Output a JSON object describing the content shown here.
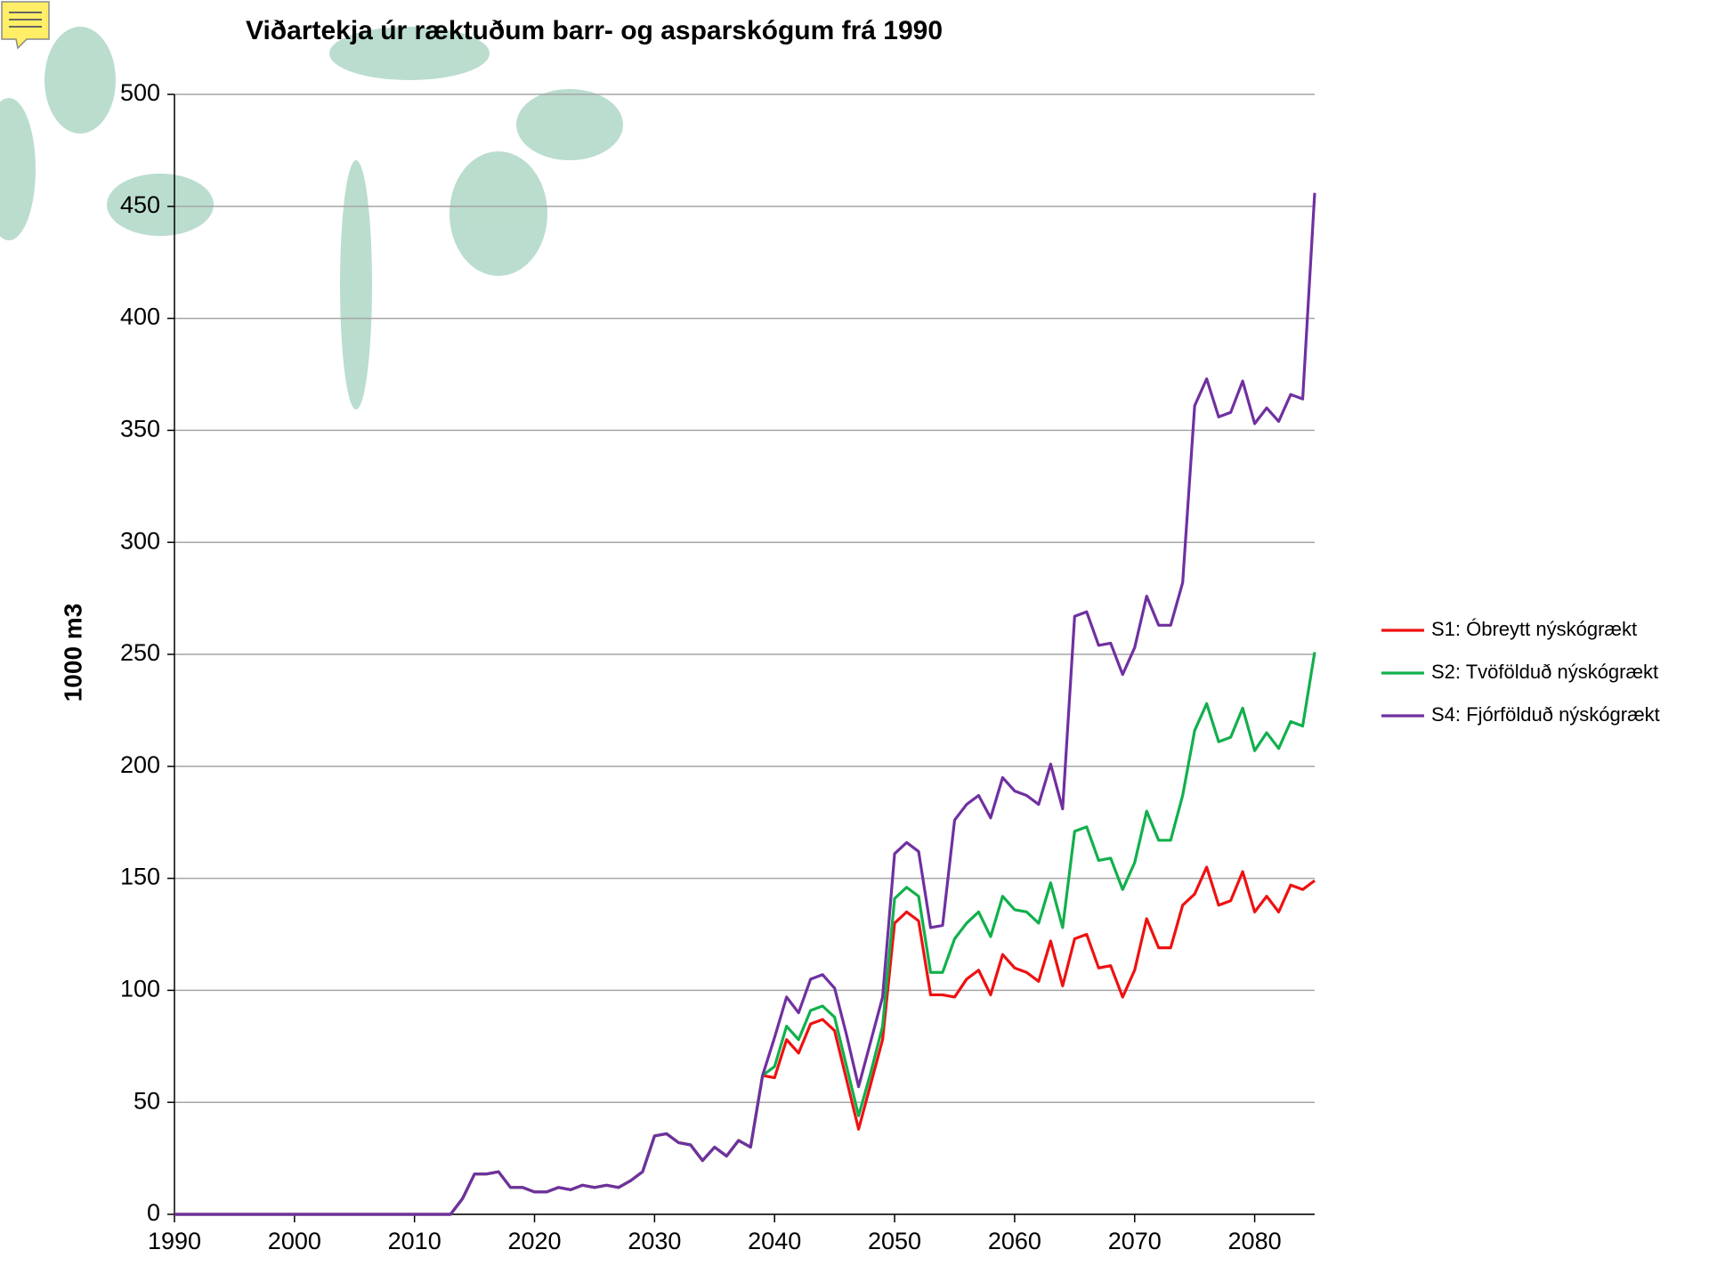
{
  "chart_data": {
    "type": "line",
    "title": "Viðartekja úr ræktuðum barr- og asparskógum frá 1990",
    "y_label": "1000 m3",
    "x": [
      1990,
      1991,
      1992,
      1993,
      1994,
      1995,
      1996,
      1997,
      1998,
      1999,
      2000,
      2001,
      2002,
      2003,
      2004,
      2005,
      2006,
      2007,
      2008,
      2009,
      2010,
      2011,
      2012,
      2013,
      2014,
      2015,
      2016,
      2017,
      2018,
      2019,
      2020,
      2021,
      2022,
      2023,
      2024,
      2025,
      2026,
      2027,
      2028,
      2029,
      2030,
      2031,
      2032,
      2033,
      2034,
      2035,
      2036,
      2037,
      2038,
      2039,
      2040,
      2041,
      2042,
      2043,
      2044,
      2045,
      2046,
      2047,
      2048,
      2049,
      2050,
      2051,
      2052,
      2053,
      2054,
      2055,
      2056,
      2057,
      2058,
      2059,
      2060,
      2061,
      2062,
      2063,
      2064,
      2065,
      2066,
      2067,
      2068,
      2069,
      2070,
      2071,
      2072,
      2073,
      2074,
      2075,
      2076,
      2077,
      2078,
      2079,
      2080,
      2081,
      2082,
      2083,
      2084,
      2085
    ],
    "series": [
      {
        "name": "S1: Óbreytt nýskógrækt",
        "color": "#ee1111",
        "values": [
          0,
          0,
          0,
          0,
          0,
          0,
          0,
          0,
          0,
          0,
          0,
          0,
          0,
          0,
          0,
          0,
          0,
          0,
          0,
          0,
          0,
          0,
          0,
          0,
          7,
          18,
          18,
          19,
          12,
          12,
          10,
          10,
          12,
          11,
          13,
          12,
          13,
          12,
          15,
          19,
          35,
          36,
          32,
          31,
          24,
          30,
          26,
          33,
          30,
          62,
          61,
          78,
          72,
          85,
          87,
          82,
          60,
          38,
          58,
          78,
          130,
          135,
          131,
          98,
          98,
          97,
          105,
          109,
          98,
          116,
          110,
          108,
          104,
          122,
          102,
          123,
          125,
          110,
          111,
          97,
          109,
          132,
          119,
          119,
          138,
          143,
          155,
          138,
          140,
          153,
          135,
          142,
          135,
          147,
          145,
          149
        ]
      },
      {
        "name": "S2: Tvöfölduð nýskógrækt",
        "color": "#11b04c",
        "values": [
          0,
          0,
          0,
          0,
          0,
          0,
          0,
          0,
          0,
          0,
          0,
          0,
          0,
          0,
          0,
          0,
          0,
          0,
          0,
          0,
          0,
          0,
          0,
          0,
          7,
          18,
          18,
          19,
          12,
          12,
          10,
          10,
          12,
          11,
          13,
          12,
          13,
          12,
          15,
          19,
          35,
          36,
          32,
          31,
          24,
          30,
          26,
          33,
          30,
          62,
          66,
          84,
          78,
          91,
          93,
          88,
          66,
          44,
          63,
          84,
          141,
          146,
          142,
          108,
          108,
          123,
          130,
          135,
          124,
          142,
          136,
          135,
          130,
          148,
          128,
          171,
          173,
          158,
          159,
          145,
          157,
          180,
          167,
          167,
          187,
          216,
          228,
          211,
          213,
          226,
          207,
          215,
          208,
          220,
          218,
          251
        ]
      },
      {
        "name": "S4: Fjórfölduð nýskógrækt",
        "color": "#7030a0",
        "values": [
          0,
          0,
          0,
          0,
          0,
          0,
          0,
          0,
          0,
          0,
          0,
          0,
          0,
          0,
          0,
          0,
          0,
          0,
          0,
          0,
          0,
          0,
          0,
          0,
          7,
          18,
          18,
          19,
          12,
          12,
          10,
          10,
          12,
          11,
          13,
          12,
          13,
          12,
          15,
          19,
          35,
          36,
          32,
          31,
          24,
          30,
          26,
          33,
          30,
          62,
          79,
          97,
          90,
          105,
          107,
          101,
          80,
          57,
          77,
          97,
          161,
          166,
          162,
          128,
          129,
          176,
          183,
          187,
          177,
          195,
          189,
          187,
          183,
          201,
          181,
          267,
          269,
          254,
          255,
          241,
          253,
          276,
          263,
          263,
          282,
          361,
          373,
          356,
          358,
          372,
          353,
          360,
          354,
          366,
          364,
          456
        ]
      }
    ],
    "xlim": [
      1990,
      2085
    ],
    "xticks": [
      1990,
      2000,
      2010,
      2020,
      2030,
      2040,
      2050,
      2060,
      2070,
      2080
    ],
    "ylim": [
      0,
      500
    ],
    "yticks": [
      0,
      50,
      100,
      150,
      200,
      250,
      300,
      350,
      400,
      450,
      500
    ],
    "grid": true,
    "legend": "right"
  }
}
